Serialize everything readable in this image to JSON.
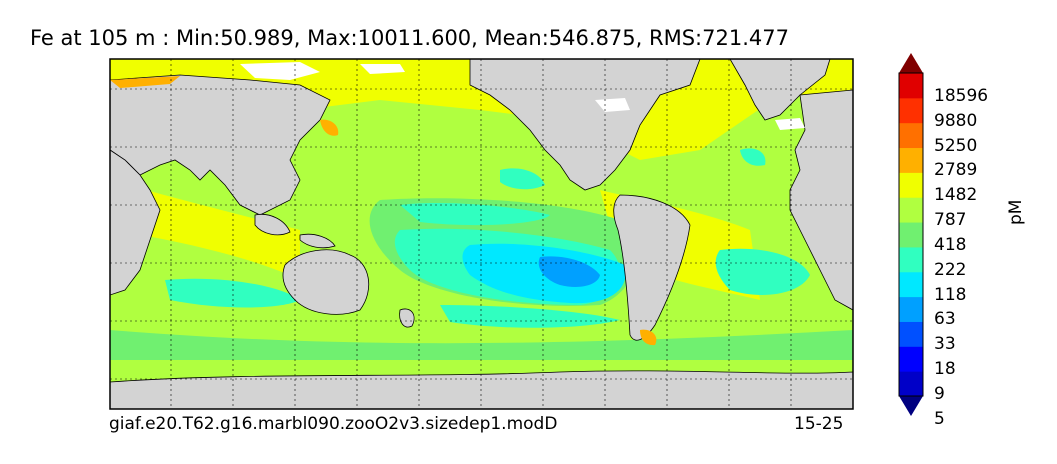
{
  "title": "Fe at 105 m : Min:50.989, Max:10011.600, Mean:546.875, RMS:721.477",
  "caption": "giaf.e20.T62.g16.marbl090.zooO2v3.sizedep1.modD",
  "years": "15-25",
  "colorbar": {
    "units": "pM",
    "ticks": [
      "18596",
      "9880",
      "5250",
      "2789",
      "1482",
      "787",
      "418",
      "222",
      "118",
      "63",
      "33",
      "18",
      "9",
      "5"
    ],
    "colors": [
      "#000080",
      "#0000c8",
      "#0000ff",
      "#0050ff",
      "#00a0ff",
      "#00e8ff",
      "#30ffc0",
      "#70f070",
      "#b0ff40",
      "#f0ff00",
      "#ffb000",
      "#ff7000",
      "#ff3000",
      "#e00000",
      "#800000"
    ],
    "extend": "both"
  },
  "map": {
    "land_color": "#d3d3d3",
    "gridlines": "dashed",
    "projection": "cylindrical"
  }
}
